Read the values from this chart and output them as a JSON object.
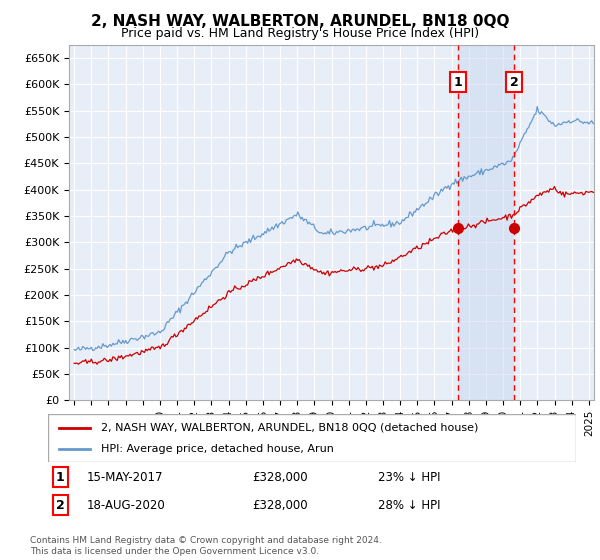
{
  "title": "2, NASH WAY, WALBERTON, ARUNDEL, BN18 0QQ",
  "subtitle": "Price paid vs. HM Land Registry's House Price Index (HPI)",
  "ylabel_ticks": [
    "£0",
    "£50K",
    "£100K",
    "£150K",
    "£200K",
    "£250K",
    "£300K",
    "£350K",
    "£400K",
    "£450K",
    "£500K",
    "£550K",
    "£600K",
    "£650K"
  ],
  "ytick_values": [
    0,
    50000,
    100000,
    150000,
    200000,
    250000,
    300000,
    350000,
    400000,
    450000,
    500000,
    550000,
    600000,
    650000
  ],
  "xlim_start": 1994.7,
  "xlim_end": 2025.3,
  "ylim_min": 0,
  "ylim_max": 675000,
  "purchase1_date": 2017.37,
  "purchase1_value": 328000,
  "purchase1_label": "1",
  "purchase2_date": 2020.63,
  "purchase2_value": 328000,
  "purchase2_label": "2",
  "legend_line1": "2, NASH WAY, WALBERTON, ARUNDEL, BN18 0QQ (detached house)",
  "legend_line2": "HPI: Average price, detached house, Arun",
  "footer": "Contains HM Land Registry data © Crown copyright and database right 2024.\nThis data is licensed under the Open Government Licence v3.0.",
  "line_color_red": "#cc0000",
  "line_color_blue": "#6699cc",
  "background_plot": "#e8eef8",
  "shade_between_color": "#dde8f5",
  "grid_color": "#ffffff",
  "purchase_dot_color": "#cc0000",
  "ann1_date": "15-MAY-2017",
  "ann1_price": "£328,000",
  "ann1_pct": "23% ↓ HPI",
  "ann2_date": "18-AUG-2020",
  "ann2_price": "£328,000",
  "ann2_pct": "28% ↓ HPI"
}
